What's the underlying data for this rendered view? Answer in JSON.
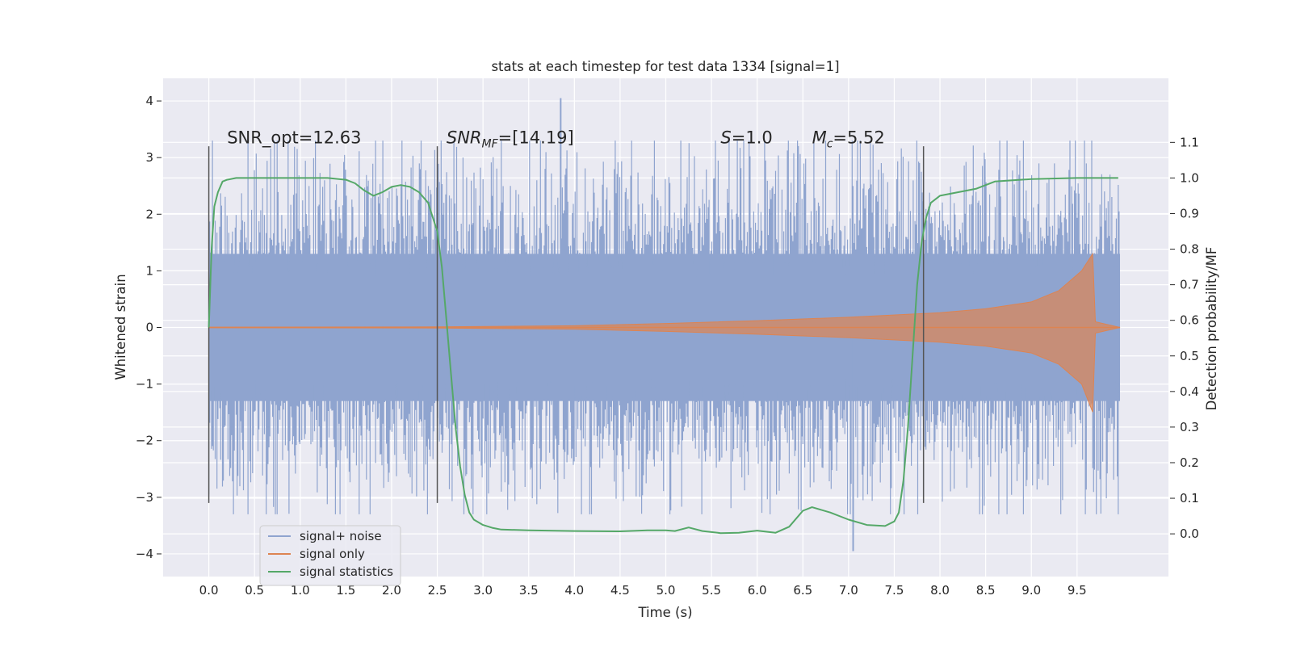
{
  "chart_data": {
    "type": "line",
    "title": "stats at each timestep for test data 1334 [signal=1]",
    "xlabel": "Time (s)",
    "ylabel": "Whitened strain",
    "y2label": "Detection probability/MF",
    "xlim": [
      -0.5,
      10.5
    ],
    "ylim": [
      -4.4,
      4.4
    ],
    "y2lim": [
      -0.12,
      1.28
    ],
    "xticks": [
      0.0,
      0.5,
      1.0,
      1.5,
      2.0,
      2.5,
      3.0,
      3.5,
      4.0,
      4.5,
      5.0,
      5.5,
      6.0,
      6.5,
      7.0,
      7.5,
      8.0,
      8.5,
      9.0,
      9.5
    ],
    "xtick_labels": [
      "0.0",
      "0.5",
      "1.0",
      "1.5",
      "2.0",
      "2.5",
      "3.0",
      "3.5",
      "4.0",
      "4.5",
      "5.0",
      "5.5",
      "6.0",
      "6.5",
      "7.0",
      "7.5",
      "8.0",
      "8.5",
      "9.0",
      "9.5"
    ],
    "yticks": [
      4,
      3,
      2,
      1,
      0,
      -1,
      -2,
      -3,
      -4
    ],
    "ytick_labels": [
      "4",
      "3",
      "2",
      "1",
      "0",
      "−1",
      "−2",
      "−3",
      "−4"
    ],
    "y2ticks": [
      1.1,
      1.0,
      0.9,
      0.8,
      0.7,
      0.6,
      0.5,
      0.4,
      0.3,
      0.2,
      0.1,
      0.0
    ],
    "y2tick_labels": [
      "1.1",
      "1.0",
      "0.9",
      "0.8",
      "0.7",
      "0.6",
      "0.5",
      "0.4",
      "0.3",
      "0.2",
      "0.1",
      "0.0"
    ],
    "grid": true,
    "legend_position": "lower-left",
    "series": [
      {
        "name": "signal+ noise",
        "axis": "left",
        "color": "#8fa4cf",
        "description_values": {
          "x_range": [
            0.0,
            9.97
          ],
          "band_1sigma": [
            -1.3,
            1.3
          ],
          "typical_peaks": [
            -3.0,
            3.0
          ],
          "max_peak": {
            "x": 3.85,
            "y": 4.05
          },
          "min_peak": {
            "x": 7.05,
            "y": -3.95
          }
        }
      },
      {
        "name": "signal only",
        "axis": "left",
        "color": "#dd8452",
        "envelope": [
          {
            "x": 0.0,
            "y": 0.005
          },
          {
            "x": 2.5,
            "y": 0.01
          },
          {
            "x": 4.0,
            "y": 0.03
          },
          {
            "x": 5.0,
            "y": 0.07
          },
          {
            "x": 6.0,
            "y": 0.12
          },
          {
            "x": 7.0,
            "y": 0.18
          },
          {
            "x": 8.0,
            "y": 0.26
          },
          {
            "x": 8.5,
            "y": 0.33
          },
          {
            "x": 9.0,
            "y": 0.45
          },
          {
            "x": 9.3,
            "y": 0.65
          },
          {
            "x": 9.55,
            "y": 1.0
          },
          {
            "x": 9.67,
            "y": 1.3
          },
          {
            "x": 9.7,
            "y": 0.1
          },
          {
            "x": 9.97,
            "y": 0.0
          }
        ]
      },
      {
        "name": "signal statistics",
        "axis": "right",
        "color": "#55a868",
        "x": [
          0.0,
          0.03,
          0.06,
          0.1,
          0.15,
          0.2,
          0.3,
          0.5,
          0.8,
          1.0,
          1.3,
          1.5,
          1.6,
          1.7,
          1.8,
          1.9,
          2.0,
          2.1,
          2.2,
          2.3,
          2.4,
          2.5,
          2.55,
          2.6,
          2.65,
          2.7,
          2.75,
          2.8,
          2.85,
          2.9,
          3.0,
          3.1,
          3.2,
          3.5,
          4.0,
          4.5,
          4.8,
          5.0,
          5.1,
          5.25,
          5.4,
          5.6,
          5.8,
          6.0,
          6.2,
          6.35,
          6.5,
          6.6,
          6.8,
          7.0,
          7.2,
          7.4,
          7.5,
          7.55,
          7.6,
          7.65,
          7.7,
          7.75,
          7.8,
          7.85,
          7.9,
          8.0,
          8.2,
          8.4,
          8.6,
          9.0,
          9.5,
          9.95
        ],
        "y": [
          0.58,
          0.8,
          0.92,
          0.96,
          0.99,
          0.995,
          1.0,
          1.0,
          1.0,
          1.0,
          1.0,
          0.995,
          0.985,
          0.965,
          0.95,
          0.96,
          0.975,
          0.98,
          0.975,
          0.96,
          0.93,
          0.85,
          0.75,
          0.6,
          0.45,
          0.3,
          0.19,
          0.11,
          0.06,
          0.04,
          0.025,
          0.017,
          0.012,
          0.01,
          0.008,
          0.007,
          0.01,
          0.01,
          0.008,
          0.018,
          0.008,
          0.002,
          0.003,
          0.009,
          0.003,
          0.02,
          0.065,
          0.075,
          0.06,
          0.04,
          0.025,
          0.022,
          0.035,
          0.06,
          0.15,
          0.3,
          0.5,
          0.7,
          0.82,
          0.89,
          0.93,
          0.95,
          0.96,
          0.97,
          0.99,
          0.997,
          1.0,
          1.0
        ]
      }
    ],
    "vertical_markers": [
      {
        "x": 0.0,
        "y_range": [
          -3.1,
          3.2
        ]
      },
      {
        "x": 2.5,
        "y_range": [
          -3.1,
          3.2
        ]
      },
      {
        "x": 7.82,
        "y_range": [
          -3.1,
          3.2
        ]
      }
    ],
    "annotations": [
      {
        "text": "SNR_opt=12.63",
        "x": 0.2,
        "y": 3.25
      },
      {
        "text_main": "SNR",
        "text_sub": "MF",
        "text_rest": "=[14.19]",
        "x": 2.6,
        "y": 3.25
      },
      {
        "text_main": "S",
        "text_rest": "=1.0",
        "x": 5.6,
        "y": 3.25
      },
      {
        "text_main": "M",
        "text_sub": "c",
        "text_rest": "=5.52",
        "x": 6.6,
        "y": 3.25
      }
    ]
  }
}
